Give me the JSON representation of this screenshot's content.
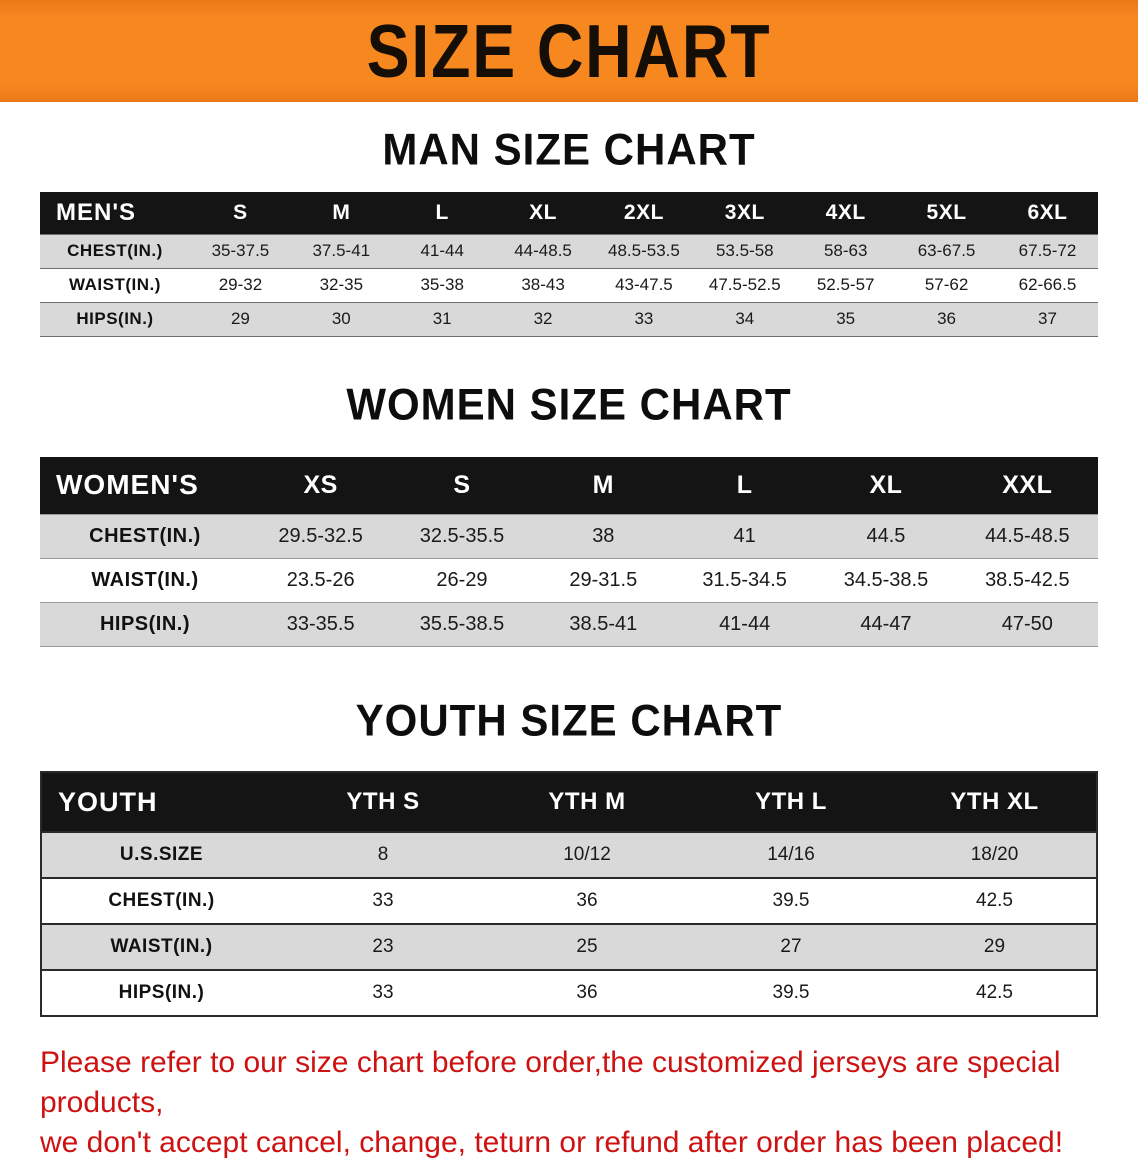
{
  "banner": {
    "title": "SIZE CHART",
    "bg_color": "#F7871F"
  },
  "sections": [
    {
      "heading": "MAN SIZE CHART",
      "table": {
        "header": [
          "MEN'S",
          "S",
          "M",
          "L",
          "XL",
          "2XL",
          "3XL",
          "4XL",
          "5XL",
          "6XL"
        ],
        "rows": [
          [
            "CHEST(IN.)",
            "35-37.5",
            "37.5-41",
            "41-44",
            "44-48.5",
            "48.5-53.5",
            "53.5-58",
            "58-63",
            "63-67.5",
            "67.5-72"
          ],
          [
            "WAIST(IN.)",
            "29-32",
            "32-35",
            "35-38",
            "38-43",
            "43-47.5",
            "47.5-52.5",
            "52.5-57",
            "57-62",
            "62-66.5"
          ],
          [
            "HIPS(IN.)",
            "29",
            "30",
            "31",
            "32",
            "33",
            "34",
            "35",
            "36",
            "37"
          ]
        ]
      }
    },
    {
      "heading": "WOMEN SIZE CHART",
      "table": {
        "header": [
          "WOMEN'S",
          "XS",
          "S",
          "M",
          "L",
          "XL",
          "XXL"
        ],
        "rows": [
          [
            "CHEST(IN.)",
            "29.5-32.5",
            "32.5-35.5",
            "38",
            "41",
            "44.5",
            "44.5-48.5"
          ],
          [
            "WAIST(IN.)",
            "23.5-26",
            "26-29",
            "29-31.5",
            "31.5-34.5",
            "34.5-38.5",
            "38.5-42.5"
          ],
          [
            "HIPS(IN.)",
            "33-35.5",
            "35.5-38.5",
            "38.5-41",
            "41-44",
            "44-47",
            "47-50"
          ]
        ]
      }
    },
    {
      "heading": "YOUTH SIZE CHART",
      "table": {
        "header": [
          "YOUTH",
          "YTH S",
          "YTH M",
          "YTH L",
          "YTH XL"
        ],
        "rows": [
          [
            "U.S.SIZE",
            "8",
            "10/12",
            "14/16",
            "18/20"
          ],
          [
            "CHEST(IN.)",
            "33",
            "36",
            "39.5",
            "42.5"
          ],
          [
            "WAIST(IN.)",
            "23",
            "25",
            "27",
            "29"
          ],
          [
            "HIPS(IN.)",
            "33",
            "36",
            "39.5",
            "42.5"
          ]
        ]
      }
    }
  ],
  "footer": {
    "line1": "Please refer to our size chart before order,the customized jerseys are special products,",
    "line2": "we don't accept cancel, change, teturn or refund after order has been placed!",
    "color": "#CE1212"
  }
}
